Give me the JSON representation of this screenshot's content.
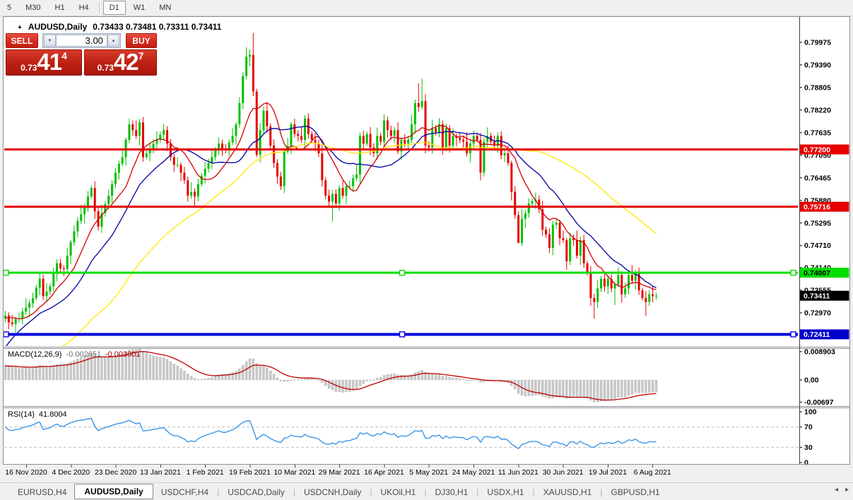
{
  "toolbar": {
    "items": [
      "5",
      "M30",
      "H1",
      "H4",
      "D1",
      "W1",
      "MN"
    ],
    "active": "D1",
    "separator_before": "D1"
  },
  "chart": {
    "symbol_period": "AUDUSD,Daily",
    "ohlc": "0.73433 0.73481 0.73311 0.73411",
    "collapse_icon": "▲"
  },
  "trade": {
    "sell_label": "SELL",
    "buy_label": "BUY",
    "volume": "3.00",
    "spin_down_icon": "▼",
    "spin_up_icon": "▲",
    "sell_price_prefix": "0.73",
    "sell_price_big": "41",
    "sell_price_sup": "4",
    "buy_price_prefix": "0.73",
    "buy_price_big": "42",
    "buy_price_sup": "7"
  },
  "price_axis": {
    "ticks": [
      "0.79975",
      "0.79390",
      "0.78805",
      "0.78220",
      "0.77635",
      "0.77050",
      "0.76465",
      "0.75880",
      "0.75295",
      "0.74710",
      "0.74140",
      "0.73555",
      "0.72970"
    ],
    "badges": [
      {
        "text": "0.77200",
        "price": 0.772,
        "bg": "#e60000",
        "fg": "#ffffff"
      },
      {
        "text": "0.75716",
        "price": 0.75716,
        "bg": "#e60000",
        "fg": "#ffffff"
      },
      {
        "text": "0.74007",
        "price": 0.74007,
        "bg": "#00dd00",
        "fg": "#000000"
      },
      {
        "text": "0.73411",
        "price": 0.73411,
        "bg": "#000000",
        "fg": "#ffffff"
      },
      {
        "text": "0.72411",
        "price": 0.72411,
        "bg": "#0000cc",
        "fg": "#ffffff"
      }
    ]
  },
  "hlines": [
    {
      "price": 0.772,
      "color": "#e60000",
      "width": 3,
      "selected": false
    },
    {
      "price": 0.75716,
      "color": "#e60000",
      "width": 3,
      "selected": false
    },
    {
      "price": 0.74007,
      "color": "#00dd00",
      "width": 3,
      "selected": true
    },
    {
      "price": 0.72411,
      "color": "#0000e0",
      "width": 4,
      "selected": true
    }
  ],
  "chart_data": {
    "type": "candlestick",
    "symbol": "AUDUSD",
    "timeframe": "Daily",
    "ylim": [
      0.721,
      0.8043
    ],
    "x_labels": [
      "16 Nov 2020",
      "4 Dec 2020",
      "23 Dec 2020",
      "13 Jan 2021",
      "1 Feb 2021",
      "19 Feb 2021",
      "10 Mar 2021",
      "29 Mar 2021",
      "16 Apr 2021",
      "5 May 2021",
      "24 May 2021",
      "11 Jun 2021",
      "30 Jun 2021",
      "19 Jul 2021",
      "6 Aug 2021"
    ],
    "up_color": "#00c000",
    "down_color": "#e60000",
    "history_closes": [
      0.718,
      0.721,
      0.724,
      0.7265,
      0.7285,
      0.73,
      0.731,
      0.7282,
      0.7255,
      0.723,
      0.719,
      0.7155,
      0.712,
      0.708,
      0.7035,
      0.706,
      0.709,
      0.711,
      0.7085,
      0.706,
      0.7075,
      0.7095,
      0.7115,
      0.713,
      0.7105,
      0.708,
      0.706,
      0.704,
      0.7055,
      0.707,
      0.709,
      0.711,
      0.713,
      0.7148,
      0.716,
      0.713,
      0.7095,
      0.706,
      0.703,
      0.7005,
      0.702,
      0.7045,
      0.707,
      0.7095,
      0.712,
      0.7145,
      0.7165,
      0.7185,
      0.7205,
      0.7225,
      0.7245,
      0.7262,
      0.7278,
      0.729,
      0.73,
      0.7292,
      0.7282,
      0.7275,
      0.7282,
      0.7288
    ],
    "closes": [
      0.729,
      0.7272,
      0.7268,
      0.7281,
      0.7282,
      0.73,
      0.731,
      0.7322,
      0.7335,
      0.7362,
      0.7385,
      0.734,
      0.7352,
      0.7365,
      0.7398,
      0.7425,
      0.7412,
      0.741,
      0.7445,
      0.748,
      0.7508,
      0.7535,
      0.7552,
      0.757,
      0.7598,
      0.762,
      0.756,
      0.752,
      0.7555,
      0.7578,
      0.76,
      0.763,
      0.766,
      0.7683,
      0.77,
      0.7745,
      0.7785,
      0.777,
      0.7755,
      0.779,
      0.77,
      0.771,
      0.772,
      0.7735,
      0.7745,
      0.7758,
      0.777,
      0.7735,
      0.77,
      0.768,
      0.768,
      0.766,
      0.764,
      0.76,
      0.761,
      0.7598,
      0.763,
      0.7652,
      0.767,
      0.7685,
      0.77,
      0.7718,
      0.7735,
      0.7722,
      0.772,
      0.7738,
      0.7755,
      0.7785,
      0.784,
      0.791,
      0.796,
      0.7965,
      0.787,
      0.7706,
      0.777,
      0.782,
      0.778,
      0.773,
      0.7685,
      0.765,
      0.7625,
      0.7715,
      0.773,
      0.7785,
      0.776,
      0.7755,
      0.7745,
      0.78,
      0.776,
      0.7745,
      0.7735,
      0.771,
      0.764,
      0.76,
      0.7585,
      0.7605,
      0.758,
      0.762,
      0.76,
      0.7625,
      0.7625,
      0.7645,
      0.7655,
      0.7755,
      0.7735,
      0.776,
      0.7725,
      0.771,
      0.7755,
      0.774,
      0.7795,
      0.777,
      0.7755,
      0.777,
      0.7715,
      0.7745,
      0.7735,
      0.7745,
      0.7785,
      0.784,
      0.783,
      0.7845,
      0.773,
      0.7725,
      0.7775,
      0.7765,
      0.7785,
      0.7725,
      0.7775,
      0.773,
      0.7755,
      0.775,
      0.7745,
      0.774,
      0.771,
      0.7735,
      0.7755,
      0.7745,
      0.766,
      0.774,
      0.7755,
      0.774,
      0.773,
      0.7755,
      0.7705,
      0.771,
      0.7685,
      0.761,
      0.755,
      0.7478,
      0.754,
      0.7555,
      0.758,
      0.7586,
      0.759,
      0.7565,
      0.7512,
      0.75,
      0.7465,
      0.7525,
      0.753,
      0.749,
      0.7485,
      0.743,
      0.749,
      0.7485,
      0.7445,
      0.7485,
      0.7425,
      0.74,
      0.7335,
      0.7325,
      0.736,
      0.7385,
      0.7365,
      0.7385,
      0.736,
      0.737,
      0.7395,
      0.7345,
      0.736,
      0.7395,
      0.738,
      0.74,
      0.7355,
      0.7335,
      0.7325,
      0.7345,
      0.734,
      0.7341
    ],
    "wick_hi": [
      12,
      8,
      20,
      6,
      15,
      10,
      25,
      9,
      14,
      7,
      18,
      11,
      22,
      8,
      16,
      10
    ],
    "wick_lo": [
      10,
      18,
      7,
      22,
      9,
      15,
      8,
      24,
      12,
      6,
      20,
      10,
      16,
      9,
      13,
      19
    ],
    "wick_overrides": {
      "71": {
        "h": 0.7978
      },
      "72": {
        "h": 0.8022
      },
      "95": {
        "l": 0.7533
      },
      "120": {
        "h": 0.7891
      },
      "121": {
        "h": 0.7903
      },
      "149": {
        "l": 0.7477
      },
      "171": {
        "l": 0.7282
      },
      "177": {
        "l": 0.7317
      },
      "186": {
        "l": 0.7289
      }
    },
    "moving_averages": [
      {
        "period": 10,
        "color": "#d40000"
      },
      {
        "period": 21,
        "color": "#0000a0"
      },
      {
        "period": 55,
        "color": "#ffe800"
      }
    ],
    "macd": {
      "label": "MACD(12,26,9)",
      "value_main": "-0.002651",
      "value_signal": "-0.003001",
      "params": [
        12,
        26,
        9
      ],
      "ticks": [
        {
          "text": "0.008903",
          "v": 0.008903
        },
        {
          "text": "0.00",
          "v": 0
        },
        {
          "text": "-0.00697",
          "v": -0.00697
        }
      ],
      "hist_color": "#c8c8c8",
      "signal_color": "#c00000"
    },
    "rsi": {
      "label": "RSI(14)",
      "value": "41.8004",
      "period": 14,
      "ticks": [
        100,
        70,
        30,
        0
      ],
      "levels": [
        70,
        30
      ],
      "color": "#3a96e8"
    }
  },
  "tabs": {
    "items": [
      "EURUSD,H4",
      "AUDUSD,Daily",
      "USDCHF,H4",
      "USDCAD,Daily",
      "USDCNH,Daily",
      "UKOil,H1",
      "DJ30,H1",
      "USDX,H1",
      "XAUUSD,H1",
      "GBPUSD,H1"
    ],
    "active": "AUDUSD,Daily",
    "scroll_left_icon": "◂",
    "scroll_right_icon": "▸"
  }
}
